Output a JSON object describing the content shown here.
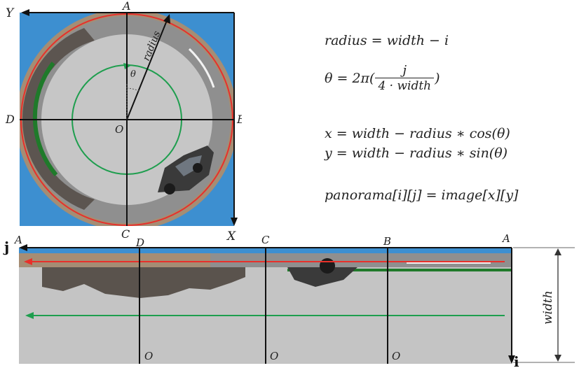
{
  "fisheye": {
    "labels": {
      "top": "A",
      "right": "B",
      "bottom": "C",
      "left": "D",
      "center": "O",
      "y_axis": "Y",
      "x_axis": "X",
      "radius": "radius",
      "theta": "θ"
    }
  },
  "formulas": {
    "radius": "radius = width  − i",
    "theta_lhs": "θ = 2π(",
    "theta_num": "j",
    "theta_den": "4 · width",
    "theta_rhs": ")",
    "x": "x = width − radius ∗ cos(θ)",
    "y": "y = width − radius ∗ sin(θ)",
    "mapping": "panorama[i][j] = image[x][y]"
  },
  "panorama": {
    "j_axis": "j",
    "i_axis": "i",
    "width_label": "width",
    "top_labels": [
      "A",
      "D",
      "C",
      "B",
      "A"
    ],
    "bottom_labels": [
      "O",
      "O",
      "O"
    ]
  },
  "colors": {
    "red_circle": "#e8302a",
    "green_circle": "#1e9e4e",
    "sky": "#3d8fd0",
    "ground": "#c2c2c2",
    "ring": "#a58d74",
    "axis": "#111111"
  }
}
